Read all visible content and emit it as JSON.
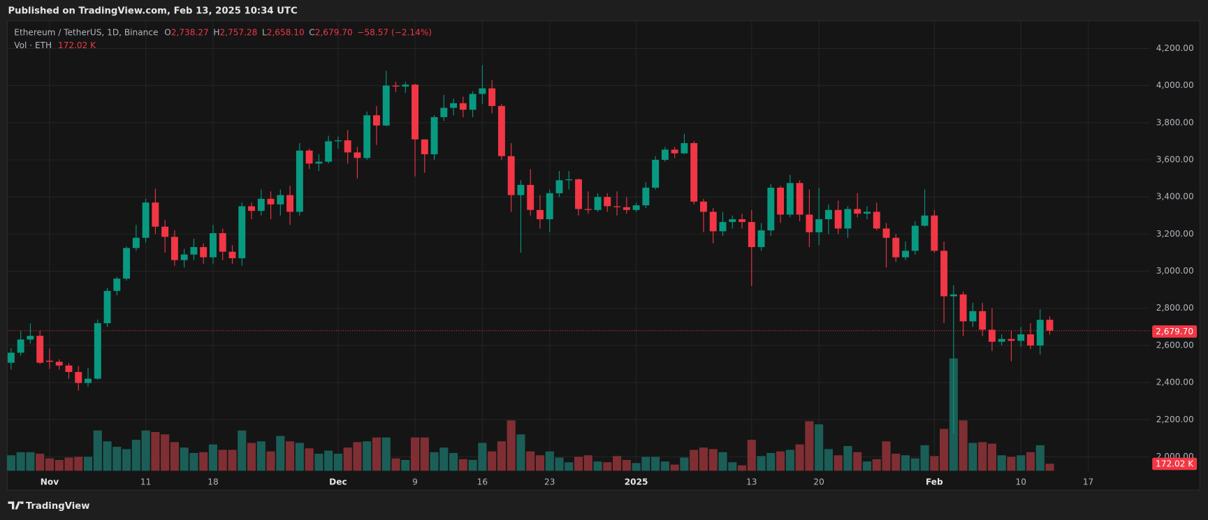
{
  "header": {
    "published": "Published on TradingView.com, Feb 13, 2025 10:34 UTC"
  },
  "footer": {
    "brand": "TradingView"
  },
  "chart_data": {
    "type": "candlestick",
    "symbol": "Ethereum / TetherUS, 1D, Binance",
    "ohlc_labels": [
      {
        "key": "O",
        "value": "2,738.27"
      },
      {
        "key": "H",
        "value": "2,757.28"
      },
      {
        "key": "L",
        "value": "2,658.10"
      },
      {
        "key": "C",
        "value": "2,679.70"
      }
    ],
    "change_label": "−58.57 (−2.14%)",
    "last_price_label": "2,679.70",
    "up_color": "#089981",
    "down_color": "#f23645",
    "volume_up_color": "#1b5e57",
    "volume_down_color": "#7f2f33",
    "x": [
      "2024-10-28",
      "2024-10-29",
      "2024-10-30",
      "2024-10-31",
      "2024-11-01",
      "2024-11-02",
      "2024-11-03",
      "2024-11-04",
      "2024-11-05",
      "2024-11-06",
      "2024-11-07",
      "2024-11-08",
      "2024-11-09",
      "2024-11-10",
      "2024-11-11",
      "2024-11-12",
      "2024-11-13",
      "2024-11-14",
      "2024-11-15",
      "2024-11-16",
      "2024-11-17",
      "2024-11-18",
      "2024-11-19",
      "2024-11-20",
      "2024-11-21",
      "2024-11-22",
      "2024-11-23",
      "2024-11-24",
      "2024-11-25",
      "2024-11-26",
      "2024-11-27",
      "2024-11-28",
      "2024-11-29",
      "2024-11-30",
      "2024-12-01",
      "2024-12-02",
      "2024-12-03",
      "2024-12-04",
      "2024-12-05",
      "2024-12-06",
      "2024-12-07",
      "2024-12-08",
      "2024-12-09",
      "2024-12-10",
      "2024-12-11",
      "2024-12-12",
      "2024-12-13",
      "2024-12-14",
      "2024-12-15",
      "2024-12-16",
      "2024-12-17",
      "2024-12-18",
      "2024-12-19",
      "2024-12-20",
      "2024-12-21",
      "2024-12-22",
      "2024-12-23",
      "2024-12-24",
      "2024-12-25",
      "2024-12-26",
      "2024-12-27",
      "2024-12-28",
      "2024-12-29",
      "2024-12-30",
      "2024-12-31",
      "2025-01-01",
      "2025-01-02",
      "2025-01-03",
      "2025-01-04",
      "2025-01-05",
      "2025-01-06",
      "2025-01-07",
      "2025-01-08",
      "2025-01-09",
      "2025-01-10",
      "2025-01-11",
      "2025-01-12",
      "2025-01-13",
      "2025-01-14",
      "2025-01-15",
      "2025-01-16",
      "2025-01-17",
      "2025-01-18",
      "2025-01-19",
      "2025-01-20",
      "2025-01-21",
      "2025-01-22",
      "2025-01-23",
      "2025-01-24",
      "2025-01-25",
      "2025-01-26",
      "2025-01-27",
      "2025-01-28",
      "2025-01-29",
      "2025-01-30",
      "2025-01-31",
      "2025-02-01",
      "2025-02-02",
      "2025-02-03",
      "2025-02-04",
      "2025-02-05",
      "2025-02-06",
      "2025-02-07",
      "2025-02-08",
      "2025-02-09",
      "2025-02-10",
      "2025-02-11",
      "2025-02-12",
      "2025-02-13"
    ],
    "open": [
      2507,
      2561,
      2632,
      2652,
      2518,
      2512,
      2492,
      2457,
      2398,
      2421,
      2720,
      2894,
      2960,
      3125,
      3180,
      3370,
      3240,
      3185,
      3060,
      3090,
      3130,
      3075,
      3205,
      3105,
      3070,
      3350,
      3325,
      3390,
      3360,
      3410,
      3320,
      3650,
      3580,
      3590,
      3700,
      3705,
      3640,
      3610,
      3840,
      3785,
      4000,
      3995,
      4005,
      3710,
      3630,
      3830,
      3880,
      3905,
      3870,
      3955,
      3985,
      3890,
      3620,
      3410,
      3465,
      3330,
      3280,
      3420,
      3490,
      3495,
      3335,
      3330,
      3400,
      3350,
      3345,
      3330,
      3355,
      3450,
      3600,
      3655,
      3635,
      3690,
      3375,
      3320,
      3215,
      3265,
      3280,
      3265,
      3130,
      3220,
      3450,
      3305,
      3475,
      3305,
      3210,
      3280,
      3330,
      3230,
      3335,
      3310,
      3320,
      3230,
      3180,
      3075,
      3110,
      3245,
      3300,
      3110,
      2865,
      2875,
      2730,
      2785,
      2685,
      2620,
      2635,
      2625,
      2660,
      2600,
      2738.27
    ],
    "high": [
      2585,
      2677,
      2719,
      2680,
      2583,
      2525,
      2505,
      2490,
      2480,
      2740,
      2910,
      2970,
      3135,
      3250,
      3390,
      3445,
      3275,
      3220,
      3120,
      3175,
      3150,
      3250,
      3230,
      3140,
      3370,
      3370,
      3440,
      3430,
      3440,
      3460,
      3690,
      3660,
      3630,
      3730,
      3725,
      3760,
      3670,
      3860,
      3890,
      4080,
      4020,
      4020,
      4010,
      3710,
      3840,
      3950,
      3930,
      3940,
      3970,
      4110,
      4030,
      3900,
      3690,
      3490,
      3550,
      3410,
      3440,
      3540,
      3540,
      3500,
      3430,
      3420,
      3420,
      3430,
      3400,
      3370,
      3480,
      3620,
      3670,
      3670,
      3740,
      3700,
      3390,
      3340,
      3320,
      3300,
      3310,
      3330,
      3260,
      3470,
      3460,
      3520,
      3490,
      3440,
      3450,
      3360,
      3380,
      3350,
      3420,
      3350,
      3370,
      3260,
      3200,
      3160,
      3270,
      3440,
      3330,
      3160,
      2925,
      2890,
      2830,
      2830,
      2800,
      2660,
      2680,
      2700,
      2720,
      2795,
      2757.28
    ],
    "low": [
      2470,
      2545,
      2610,
      2500,
      2473,
      2470,
      2420,
      2357,
      2378,
      2415,
      2700,
      2870,
      2950,
      3110,
      3155,
      3200,
      3100,
      3030,
      3020,
      3060,
      3040,
      3040,
      3060,
      3040,
      3030,
      3280,
      3300,
      3280,
      3300,
      3250,
      3300,
      3550,
      3540,
      3580,
      3660,
      3580,
      3500,
      3600,
      3680,
      3780,
      3965,
      3960,
      3510,
      3530,
      3600,
      3810,
      3840,
      3830,
      3830,
      3900,
      3850,
      3600,
      3320,
      3100,
      3300,
      3230,
      3210,
      3400,
      3440,
      3300,
      3310,
      3320,
      3320,
      3300,
      3310,
      3320,
      3340,
      3440,
      3590,
      3610,
      3630,
      3360,
      3210,
      3150,
      3190,
      3230,
      3230,
      2920,
      3110,
      3190,
      3260,
      3290,
      3270,
      3130,
      3140,
      3200,
      3200,
      3180,
      3290,
      3280,
      3220,
      3020,
      3050,
      3060,
      3090,
      3240,
      3100,
      2720,
      2125,
      2650,
      2700,
      2650,
      2570,
      2600,
      2515,
      2595,
      2580,
      2550,
      2658.1
    ],
    "close": [
      2561,
      2632,
      2652,
      2507,
      2512,
      2492,
      2457,
      2398,
      2421,
      2720,
      2894,
      2960,
      3125,
      3180,
      3370,
      3240,
      3185,
      3060,
      3090,
      3130,
      3075,
      3205,
      3105,
      3070,
      3350,
      3325,
      3390,
      3360,
      3410,
      3320,
      3650,
      3580,
      3590,
      3700,
      3705,
      3640,
      3610,
      3840,
      3785,
      4000,
      3995,
      4005,
      3710,
      3630,
      3830,
      3880,
      3905,
      3870,
      3955,
      3985,
      3890,
      3620,
      3410,
      3465,
      3330,
      3280,
      3420,
      3490,
      3495,
      3335,
      3330,
      3400,
      3350,
      3345,
      3330,
      3355,
      3450,
      3600,
      3655,
      3635,
      3690,
      3375,
      3320,
      3215,
      3265,
      3280,
      3265,
      3130,
      3220,
      3450,
      3305,
      3475,
      3305,
      3210,
      3280,
      3330,
      3230,
      3335,
      3310,
      3320,
      3230,
      3180,
      3075,
      3110,
      3245,
      3300,
      3110,
      2865,
      2875,
      2730,
      2785,
      2685,
      2620,
      2635,
      2625,
      2660,
      2600,
      2738,
      2679.7
    ],
    "volume": {
      "name": "Vol · ETH",
      "last_label": "172.02 K",
      "values": [
        380,
        456,
        456,
        418,
        304,
        266,
        323,
        342,
        342,
        988,
        722,
        589,
        532,
        760,
        988,
        950,
        893,
        703,
        570,
        437,
        456,
        646,
        513,
        513,
        988,
        684,
        722,
        475,
        855,
        722,
        684,
        551,
        418,
        494,
        418,
        570,
        703,
        722,
        817,
        817,
        304,
        266,
        817,
        817,
        456,
        570,
        437,
        285,
        266,
        684,
        475,
        722,
        1235,
        893,
        475,
        380,
        475,
        323,
        209,
        342,
        380,
        228,
        209,
        361,
        266,
        190,
        342,
        342,
        228,
        152,
        323,
        513,
        570,
        532,
        456,
        209,
        133,
        760,
        361,
        437,
        475,
        513,
        646,
        1216,
        1140,
        532,
        380,
        608,
        456,
        228,
        285,
        722,
        418,
        380,
        304,
        627,
        361,
        1026,
        2755,
        1235,
        684,
        703,
        665,
        380,
        342,
        380,
        456,
        627,
        172.02
      ]
    },
    "ylim": [
      1925,
      4345
    ],
    "yticks": [
      {
        "value": 2000,
        "label": "2,000.00"
      },
      {
        "value": 2200,
        "label": "2,200.00"
      },
      {
        "value": 2400,
        "label": "2,400.00"
      },
      {
        "value": 2600,
        "label": "2,600.00"
      },
      {
        "value": 2800,
        "label": "2,800.00"
      },
      {
        "value": 3000,
        "label": "3,000.00"
      },
      {
        "value": 3200,
        "label": "3,200.00"
      },
      {
        "value": 3400,
        "label": "3,400.00"
      },
      {
        "value": 3600,
        "label": "3,600.00"
      },
      {
        "value": 3800,
        "label": "3,800.00"
      },
      {
        "value": 4000,
        "label": "4,000.00"
      },
      {
        "value": 4200,
        "label": "4,200.00"
      }
    ],
    "xticks": [
      {
        "value": "2024-11-01",
        "label": "Nov"
      },
      {
        "value": "2024-11-11",
        "label": "11"
      },
      {
        "value": "2024-11-18",
        "label": "18"
      },
      {
        "value": "2024-12-01",
        "label": "Dec"
      },
      {
        "value": "2024-12-09",
        "label": "9"
      },
      {
        "value": "2024-12-16",
        "label": "16"
      },
      {
        "value": "2024-12-23",
        "label": "23"
      },
      {
        "value": "2025-01-01",
        "label": "2025"
      },
      {
        "value": "2025-01-13",
        "label": "13"
      },
      {
        "value": "2025-01-20",
        "label": "20"
      },
      {
        "value": "2025-02-01",
        "label": "Feb"
      },
      {
        "value": "2025-02-10",
        "label": "10"
      },
      {
        "value": "2025-02-17",
        "label": "17"
      }
    ],
    "grid": true
  }
}
